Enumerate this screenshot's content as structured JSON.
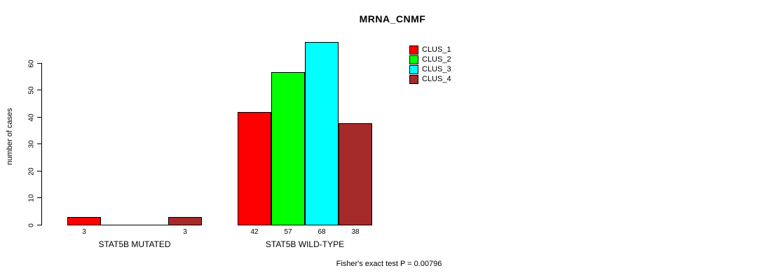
{
  "chart_data": {
    "type": "bar",
    "title": "MRNA_CNMF",
    "ylabel": "number of cases",
    "xlabel": "",
    "categories": [
      "STAT5B MUTATED",
      "STAT5B WILD-TYPE"
    ],
    "series": [
      {
        "name": "CLUS_1",
        "color": "#ff0000",
        "values": [
          3,
          42
        ]
      },
      {
        "name": "CLUS_2",
        "color": "#00ff00",
        "values": [
          0,
          57
        ]
      },
      {
        "name": "CLUS_3",
        "color": "#00ffff",
        "values": [
          0,
          68
        ]
      },
      {
        "name": "CLUS_4",
        "color": "#a52a2a",
        "values": [
          3,
          38
        ]
      }
    ],
    "yticks": [
      0,
      10,
      20,
      30,
      40,
      50,
      60
    ],
    "ylim": [
      0,
      68
    ],
    "grid": false,
    "legend_position": "top-right",
    "value_labels_shown": true,
    "hide_zero_value_labels": true,
    "annotation": "Fisher's exact test P = 0.00796"
  }
}
